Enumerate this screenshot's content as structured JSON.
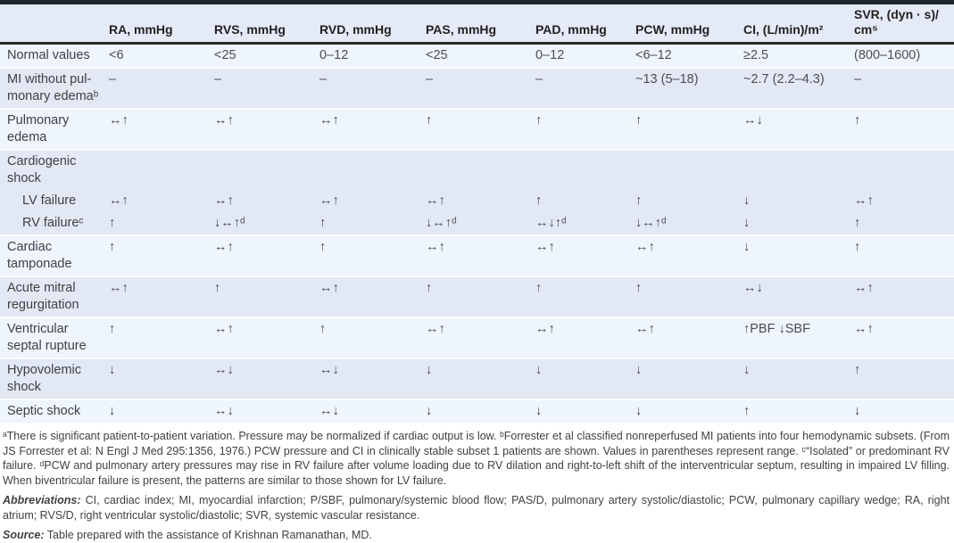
{
  "colors": {
    "top_bar": "#20262e",
    "header_band": "#e4eaf6",
    "row_light": "#eef5fc",
    "row_dark": "#e2e9f5",
    "header_rule": "#2b2b2b"
  },
  "table": {
    "columns": [
      "",
      "RA, mmHg",
      "RVS, mmHg",
      "RVD, mmHg",
      "PAS, mmHg",
      "PAD, mmHg",
      "PCW, mmHg",
      "CI, (L/min)/m²",
      "SVR, (dyn · s)/\ncm⁵"
    ],
    "rows": [
      {
        "label": "Normal values",
        "indent": false,
        "shade": "light",
        "sep": true,
        "values": [
          "<6",
          "<25",
          "0–12",
          "<25",
          "0–12",
          "<6–12",
          "≥2.5",
          "(800–1600)"
        ]
      },
      {
        "label": "MI without pul-\nmonary edemaᵇ",
        "indent": false,
        "shade": "dark",
        "sep": true,
        "values": [
          "–",
          "–",
          "–",
          "–",
          "–",
          "~13 (5–18)",
          "~2.7 (2.2–4.3)",
          "–"
        ]
      },
      {
        "label": "Pulmonary\nedema",
        "indent": false,
        "shade": "light",
        "sep": true,
        "values": [
          "↔↑",
          "↔↑",
          "↔↑",
          "↑",
          "↑",
          "↑",
          "↔↓",
          "↑"
        ]
      },
      {
        "label": "Cardiogenic\nshock",
        "indent": false,
        "shade": "dark",
        "sep": true,
        "values": [
          "",
          "",
          "",
          "",
          "",
          "",
          "",
          ""
        ]
      },
      {
        "label": "LV failure",
        "indent": true,
        "shade": "dark",
        "sep": false,
        "values": [
          "↔↑",
          "↔↑",
          "↔↑",
          "↔↑",
          "↑",
          "↑",
          "↓",
          "↔↑"
        ]
      },
      {
        "label": "RV failureᶜ",
        "indent": true,
        "shade": "dark",
        "sep": false,
        "values": [
          "↑",
          "↓↔↑ᵈ",
          "↑",
          "↓↔↑ᵈ",
          "↔↓↑ᵈ",
          "↓↔↑ᵈ",
          "↓",
          "↑"
        ]
      },
      {
        "label": "Cardiac\ntamponade",
        "indent": false,
        "shade": "light",
        "sep": true,
        "values": [
          "↑",
          "↔↑",
          "↑",
          "↔↑",
          "↔↑",
          "↔↑",
          "↓",
          "↑"
        ]
      },
      {
        "label": "Acute mitral\nregurgitation",
        "indent": false,
        "shade": "dark",
        "sep": true,
        "values": [
          "↔↑",
          "↑",
          "↔↑",
          "↑",
          "↑",
          "↑",
          "↔↓",
          "↔↑"
        ]
      },
      {
        "label": "Ventricular\nseptal rupture",
        "indent": false,
        "shade": "light",
        "sep": true,
        "values": [
          "↑",
          "↔↑",
          "↑",
          "↔↑",
          "↔↑",
          "↔↑",
          "↑PBF ↓SBF",
          "↔↑"
        ]
      },
      {
        "label": "Hypovolemic\nshock",
        "indent": false,
        "shade": "dark",
        "sep": true,
        "values": [
          "↓",
          "↔↓",
          "↔↓",
          "↓",
          "↓",
          "↓",
          "↓",
          "↑"
        ]
      },
      {
        "label": "Septic shock",
        "indent": false,
        "shade": "light",
        "sep": true,
        "values": [
          "↓",
          "↔↓",
          "↔↓",
          "↓",
          "↓",
          "↓",
          "↑",
          "↓"
        ]
      }
    ]
  },
  "footnotes": "ᵃThere is significant patient-to-patient variation. Pressure may be normalized if cardiac output is low.  ᵇForrester et al classified nonreperfused MI patients into four hemodynamic subsets. (From JS Forrester et al: N Engl J Med 295:1356, 1976.) PCW pressure and CI in clinically stable subset 1 patients are shown. Values in parentheses represent range.  ᶜ“Isolated” or predominant RV failure.  ᵈPCW and pulmonary artery pressures may rise in RV failure after volume loading due to RV dilation and right-to-left shift of the interventricular septum, resulting in impaired LV filling. When biventricular failure is present, the patterns are similar to those shown for LV failure.",
  "abbreviations_label": "Abbreviations:",
  "abbreviations_text": " CI, cardiac index; MI, myocardial infarction; P/SBF, pulmonary/systemic blood flow; PAS/D, pulmonary artery systolic/diastolic; PCW, pulmonary capillary wedge; RA, right atrium; RVS/D, right ventricular systolic/diastolic; SVR, systemic vascular resistance.",
  "source_label": "Source:",
  "source_text": " Table prepared with the assistance of Krishnan Ramanathan, MD."
}
